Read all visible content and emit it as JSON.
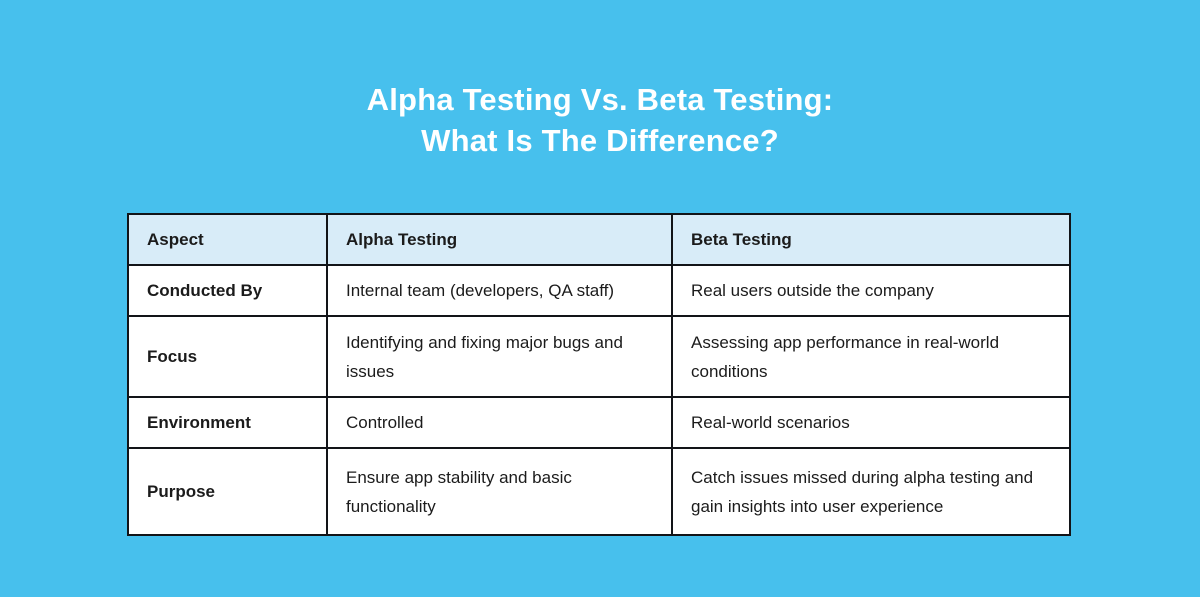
{
  "page": {
    "background_color": "#47c0ed",
    "title_color": "#ffffff",
    "table_border_color": "#121418",
    "table_header_bg": "#d8ecf8"
  },
  "title": {
    "line1": "Alpha Testing Vs. Beta Testing:",
    "line2": "What Is The Difference?"
  },
  "table": {
    "columns": [
      "Aspect",
      "Alpha Testing",
      "Beta Testing"
    ],
    "rows": [
      {
        "aspect": "Conducted By",
        "alpha": "Internal team (developers, QA staff)",
        "beta": "Real users outside the company"
      },
      {
        "aspect": "Focus",
        "alpha": "Identifying and fixing major bugs and issues",
        "beta": "Assessing app performance in real-world conditions"
      },
      {
        "aspect": "Environment",
        "alpha": "Controlled",
        "beta": "Real-world scenarios"
      },
      {
        "aspect": "Purpose",
        "alpha": "Ensure app stability and basic functionality",
        "beta": "Catch issues missed during alpha testing and gain insights into user experience"
      }
    ]
  }
}
